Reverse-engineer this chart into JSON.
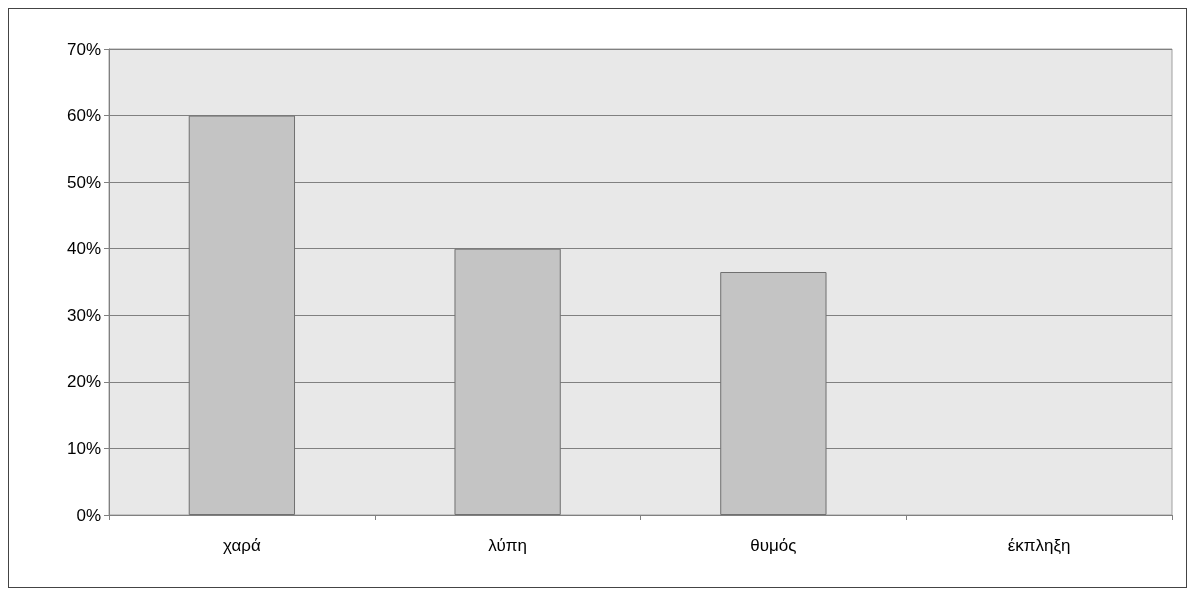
{
  "chart_data": {
    "type": "bar",
    "categories": [
      "χαρά",
      "λύπη",
      "θυμός",
      "έκπληξη"
    ],
    "values": [
      60,
      40,
      36.5,
      0
    ],
    "color": "#c4c4c4",
    "ylim": [
      0,
      70
    ],
    "yticks": [
      {
        "value": 0,
        "label": "0%"
      },
      {
        "value": 10,
        "label": "10%"
      },
      {
        "value": 20,
        "label": "20%"
      },
      {
        "value": 30,
        "label": "30%"
      },
      {
        "value": 40,
        "label": "40%"
      },
      {
        "value": 50,
        "label": "50%"
      },
      {
        "value": 60,
        "label": "60%"
      },
      {
        "value": 70,
        "label": "70%"
      }
    ],
    "grid": "y"
  }
}
